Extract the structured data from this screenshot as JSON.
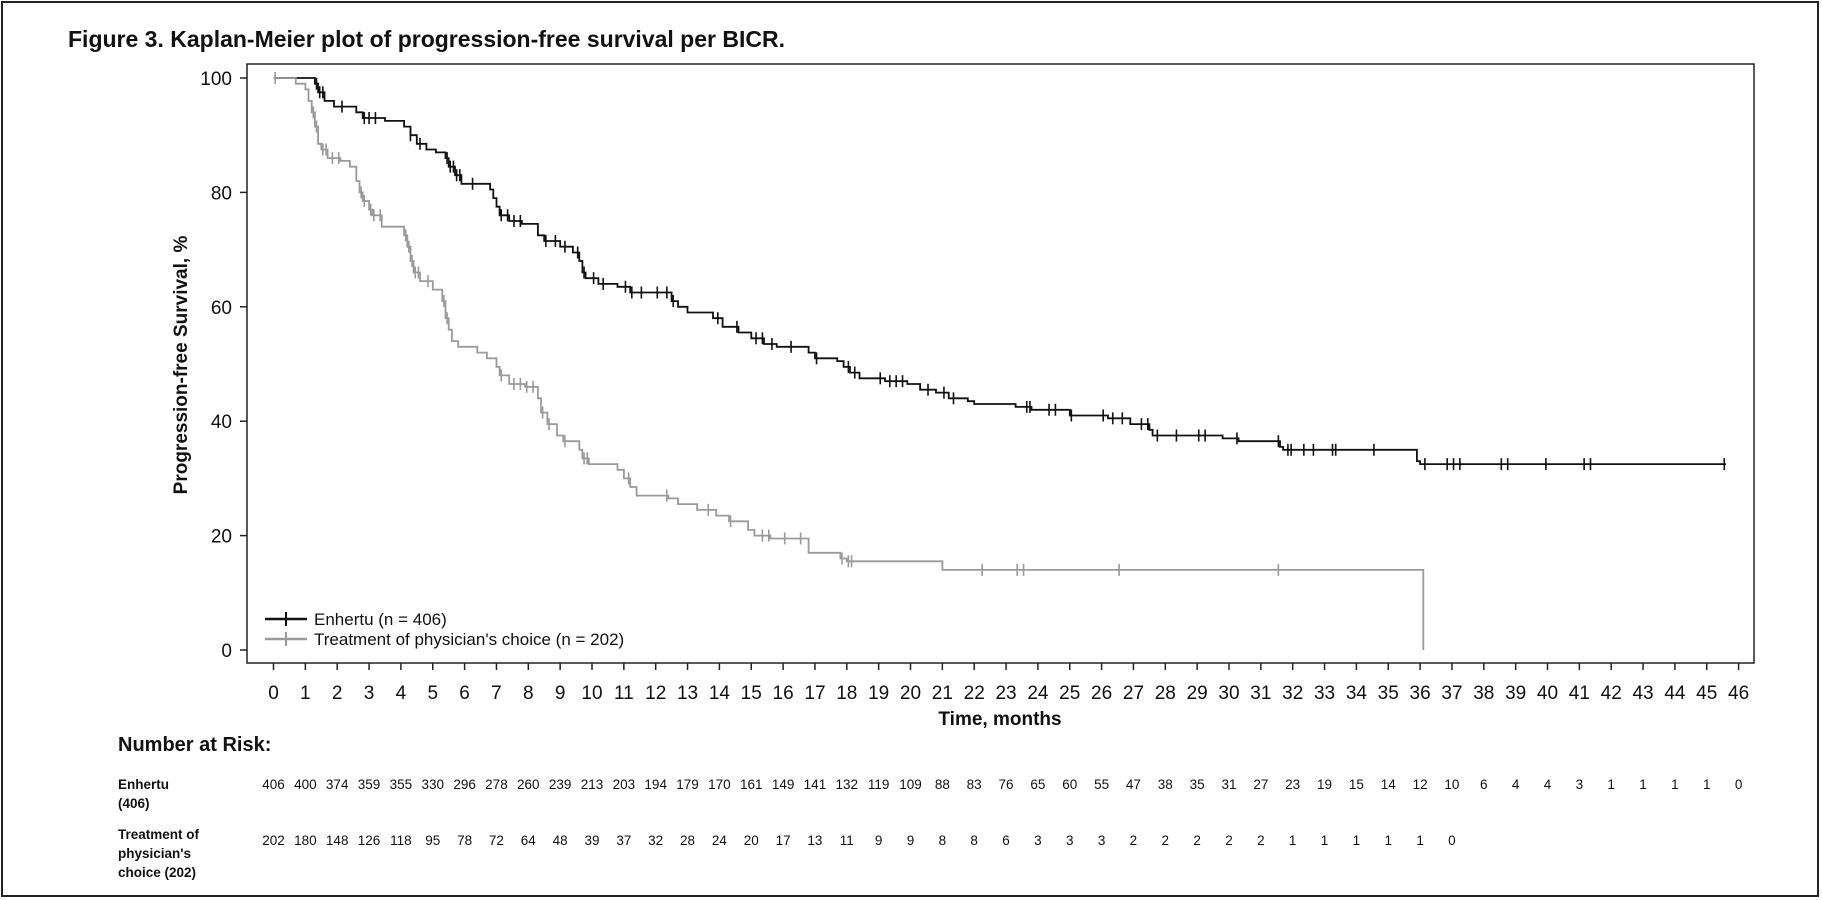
{
  "figure_title": "Figure 3. Kaplan-Meier plot of progression-free survival per BICR.",
  "colors": {
    "enhertu": "#111111",
    "tpc": "#9a9a9a"
  },
  "chart_data": {
    "type": "line",
    "subtype": "kaplan-meier step plot",
    "xlabel": "Time, months",
    "ylabel": "Progression-free Survival, %",
    "xlim": [
      0,
      46
    ],
    "ylim": [
      0,
      100
    ],
    "x_ticks": [
      "0",
      "1",
      "2",
      "3",
      "4",
      "5",
      "6",
      "7",
      "8",
      "9",
      "10",
      "11",
      "12",
      "13",
      "14",
      "15",
      "16",
      "17",
      "18",
      "19",
      "20",
      "21",
      "22",
      "23",
      "24",
      "25",
      "26",
      "27",
      "28",
      "29",
      "30",
      "31",
      "32",
      "33",
      "34",
      "35",
      "36",
      "37",
      "38",
      "39",
      "40",
      "41",
      "42",
      "43",
      "44",
      "45",
      "46"
    ],
    "y_ticks": [
      "0",
      "20",
      "40",
      "60",
      "80",
      "100"
    ],
    "legend_position": "bottom-left",
    "grid": false,
    "series": [
      {
        "name": "Enhertu (n = 406)",
        "color": "#111111",
        "steps": [
          [
            0,
            100
          ],
          [
            1.3,
            99
          ],
          [
            1.4,
            97.5
          ],
          [
            1.6,
            96
          ],
          [
            1.9,
            95
          ],
          [
            2.6,
            94
          ],
          [
            2.8,
            93
          ],
          [
            3.5,
            92.5
          ],
          [
            4.1,
            91.5
          ],
          [
            4.3,
            90
          ],
          [
            4.5,
            88.5
          ],
          [
            4.8,
            87.5
          ],
          [
            5.1,
            87
          ],
          [
            5.4,
            86
          ],
          [
            5.5,
            84.5
          ],
          [
            5.7,
            83
          ],
          [
            5.9,
            81.5
          ],
          [
            6.8,
            80.5
          ],
          [
            6.9,
            79
          ],
          [
            7.0,
            77.5
          ],
          [
            7.1,
            76
          ],
          [
            7.4,
            75
          ],
          [
            7.8,
            74.5
          ],
          [
            8.3,
            72.5
          ],
          [
            8.5,
            71.5
          ],
          [
            9.0,
            70.5
          ],
          [
            9.4,
            69.5
          ],
          [
            9.6,
            68
          ],
          [
            9.7,
            66
          ],
          [
            9.8,
            65
          ],
          [
            10.2,
            64
          ],
          [
            10.8,
            63.5
          ],
          [
            11.2,
            62.5
          ],
          [
            12.5,
            61
          ],
          [
            12.7,
            60
          ],
          [
            13.0,
            59
          ],
          [
            13.8,
            58
          ],
          [
            14.1,
            56.5
          ],
          [
            14.6,
            55.5
          ],
          [
            15.0,
            54.5
          ],
          [
            15.4,
            53.5
          ],
          [
            15.8,
            53
          ],
          [
            16.8,
            52
          ],
          [
            17.0,
            51
          ],
          [
            17.7,
            50.5
          ],
          [
            17.9,
            49.5
          ],
          [
            18.1,
            48.5
          ],
          [
            18.4,
            47.5
          ],
          [
            19.2,
            47
          ],
          [
            19.9,
            46.5
          ],
          [
            20.3,
            45.5
          ],
          [
            20.8,
            45
          ],
          [
            21.2,
            44
          ],
          [
            21.8,
            43.5
          ],
          [
            22.0,
            43
          ],
          [
            23.3,
            42.5
          ],
          [
            23.8,
            42
          ],
          [
            25.0,
            41
          ],
          [
            26.2,
            40.5
          ],
          [
            26.9,
            39.5
          ],
          [
            27.5,
            38.5
          ],
          [
            27.6,
            37.5
          ],
          [
            28.7,
            37.5
          ],
          [
            29.8,
            37
          ],
          [
            30.3,
            36.5
          ],
          [
            31.6,
            35.5
          ],
          [
            31.7,
            35
          ],
          [
            35.9,
            33
          ],
          [
            36.0,
            32.5
          ],
          [
            45.6,
            32.5
          ]
        ],
        "censor_x": [
          1.35,
          1.45,
          1.55,
          2.15,
          2.85,
          3.0,
          3.2,
          4.3,
          4.6,
          5.45,
          5.55,
          5.65,
          5.75,
          5.85,
          6.25,
          7.15,
          7.35,
          7.55,
          7.75,
          8.55,
          8.85,
          9.15,
          9.55,
          9.75,
          10.05,
          10.35,
          11.05,
          11.25,
          11.55,
          12.05,
          12.35,
          12.55,
          13.95,
          14.55,
          15.15,
          15.35,
          15.65,
          16.25,
          17.05,
          18.05,
          18.25,
          19.05,
          19.35,
          19.55,
          19.75,
          20.55,
          21.05,
          21.35,
          23.65,
          23.75,
          24.35,
          24.55,
          25.05,
          26.05,
          26.35,
          26.65,
          27.25,
          27.45,
          27.75,
          28.35,
          29.05,
          29.25,
          30.25,
          31.55,
          31.85,
          31.95,
          32.35,
          32.65,
          33.25,
          33.35,
          34.55,
          36.15,
          36.85,
          37.05,
          37.25,
          38.55,
          38.75,
          39.95,
          41.15,
          41.35,
          45.55
        ]
      },
      {
        "name": "Treatment of physician's choice (n = 202)",
        "color": "#9a9a9a",
        "steps": [
          [
            0,
            100
          ],
          [
            0.7,
            99
          ],
          [
            1.0,
            98
          ],
          [
            1.1,
            96
          ],
          [
            1.2,
            94
          ],
          [
            1.3,
            91.5
          ],
          [
            1.4,
            88.5
          ],
          [
            1.5,
            87.5
          ],
          [
            1.7,
            86
          ],
          [
            2.1,
            85.5
          ],
          [
            2.4,
            84.5
          ],
          [
            2.6,
            82
          ],
          [
            2.7,
            80
          ],
          [
            2.8,
            78.5
          ],
          [
            3.0,
            77
          ],
          [
            3.1,
            76
          ],
          [
            3.4,
            74
          ],
          [
            4.1,
            72.5
          ],
          [
            4.2,
            70.5
          ],
          [
            4.3,
            68
          ],
          [
            4.4,
            66
          ],
          [
            4.6,
            64.5
          ],
          [
            5.0,
            63
          ],
          [
            5.3,
            61
          ],
          [
            5.4,
            58
          ],
          [
            5.5,
            56
          ],
          [
            5.6,
            54
          ],
          [
            5.8,
            53
          ],
          [
            6.4,
            52
          ],
          [
            6.7,
            51
          ],
          [
            7.0,
            49.5
          ],
          [
            7.1,
            48
          ],
          [
            7.4,
            46.5
          ],
          [
            7.9,
            46
          ],
          [
            8.3,
            44
          ],
          [
            8.4,
            41.5
          ],
          [
            8.6,
            39.5
          ],
          [
            8.9,
            37.5
          ],
          [
            9.1,
            36.5
          ],
          [
            9.6,
            35
          ],
          [
            9.7,
            33.5
          ],
          [
            9.9,
            32.5
          ],
          [
            10.8,
            31.5
          ],
          [
            11.0,
            30
          ],
          [
            11.2,
            28.5
          ],
          [
            11.4,
            27
          ],
          [
            12.4,
            26.5
          ],
          [
            12.7,
            25.5
          ],
          [
            13.3,
            24.5
          ],
          [
            13.9,
            23.5
          ],
          [
            14.3,
            22.5
          ],
          [
            14.9,
            21
          ],
          [
            15.1,
            20
          ],
          [
            15.6,
            19.5
          ],
          [
            16.8,
            17
          ],
          [
            17.8,
            16
          ],
          [
            18.0,
            15.5
          ],
          [
            21.0,
            14
          ],
          [
            36.1,
            14
          ],
          [
            36.1,
            0
          ]
        ],
        "censor_x": [
          0.05,
          1.25,
          1.35,
          1.55,
          1.65,
          1.85,
          2.05,
          2.75,
          2.85,
          3.05,
          3.15,
          3.35,
          4.15,
          4.25,
          4.35,
          4.45,
          4.55,
          4.85,
          5.35,
          5.45,
          7.15,
          7.55,
          7.75,
          7.95,
          8.15,
          8.45,
          8.65,
          9.15,
          9.75,
          9.85,
          11.15,
          12.35,
          13.65,
          14.35,
          15.35,
          15.55,
          16.05,
          16.55,
          17.85,
          18.05,
          18.15,
          22.25,
          23.35,
          23.55,
          26.55,
          31.55
        ]
      }
    ],
    "number_at_risk": {
      "title": "Number at Risk:",
      "rows": [
        {
          "label_lines": [
            "Enhertu",
            "(406)"
          ],
          "values": [
            "406",
            "400",
            "374",
            "359",
            "355",
            "330",
            "296",
            "278",
            "260",
            "239",
            "213",
            "203",
            "194",
            "179",
            "170",
            "161",
            "149",
            "141",
            "132",
            "119",
            "109",
            "88",
            "83",
            "76",
            "65",
            "60",
            "55",
            "47",
            "38",
            "35",
            "31",
            "27",
            "23",
            "19",
            "15",
            "14",
            "12",
            "10",
            "6",
            "4",
            "4",
            "3",
            "1",
            "1",
            "1",
            "1",
            "0"
          ]
        },
        {
          "label_lines": [
            "Treatment of",
            "physician's",
            "choice (202)"
          ],
          "values": [
            "202",
            "180",
            "148",
            "126",
            "118",
            "95",
            "78",
            "72",
            "64",
            "48",
            "39",
            "37",
            "32",
            "28",
            "24",
            "20",
            "17",
            "13",
            "11",
            "9",
            "9",
            "8",
            "8",
            "6",
            "3",
            "3",
            "3",
            "2",
            "2",
            "2",
            "2",
            "2",
            "1",
            "1",
            "1",
            "1",
            "1",
            "0"
          ]
        }
      ]
    }
  }
}
